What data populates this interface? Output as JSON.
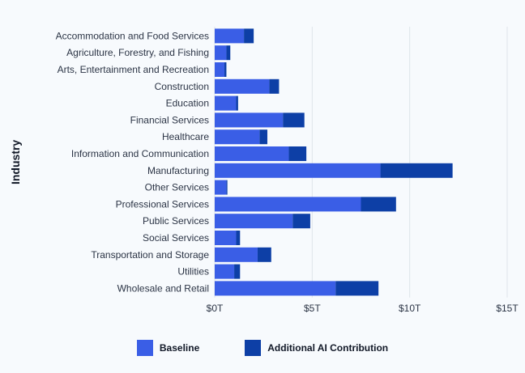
{
  "colors": {
    "baseline": "#3a5ee6",
    "additional": "#0d3fa6",
    "grid": "#dfe4ea",
    "text": "#2b3445"
  },
  "chart_data": {
    "type": "bar",
    "orientation": "horizontal",
    "stacked": true,
    "title": "",
    "ylabel": "Industry",
    "xlabel": "",
    "xlim": [
      0,
      15
    ],
    "x_ticks": [
      0,
      5,
      10,
      15
    ],
    "x_tick_labels": [
      "$0T",
      "$5T",
      "$10T",
      "$15T"
    ],
    "grid": true,
    "legend_position": "bottom",
    "categories": [
      "Accommodation and Food Services",
      "Agriculture, Forestry, and Fishing",
      "Arts, Entertainment and Recreation",
      "Construction",
      "Education",
      "Financial Services",
      "Healthcare",
      "Information and Communication",
      "Manufacturing",
      "Other Services",
      "Professional Services",
      "Public Services",
      "Social Services",
      "Transportation and Storage",
      "Utilities",
      "Wholesale and Retail"
    ],
    "series": [
      {
        "name": "Baseline",
        "values": [
          1.5,
          0.6,
          0.5,
          2.8,
          1.1,
          3.5,
          2.3,
          3.8,
          8.5,
          0.6,
          7.5,
          4.0,
          1.1,
          2.2,
          1.0,
          6.2
        ]
      },
      {
        "name": "Additional AI Contribution",
        "values": [
          0.5,
          0.2,
          0.1,
          0.5,
          0.1,
          1.1,
          0.4,
          0.9,
          3.7,
          0.05,
          1.8,
          0.9,
          0.2,
          0.7,
          0.3,
          2.2
        ]
      }
    ]
  }
}
